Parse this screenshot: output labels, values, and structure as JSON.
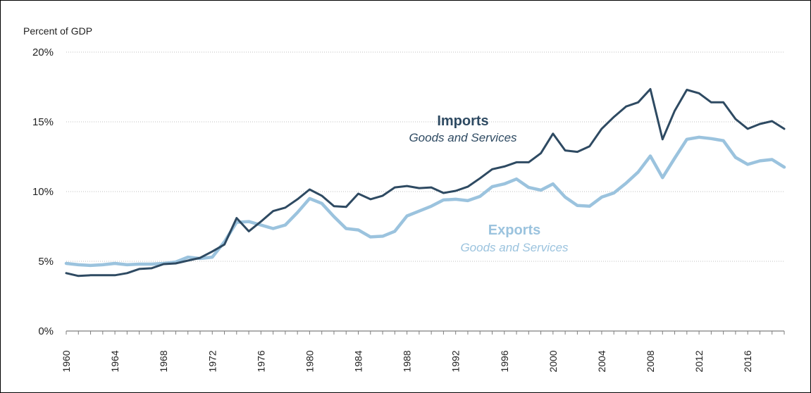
{
  "chart_data": {
    "type": "line",
    "ylabel": "Percent of GDP",
    "ylim": [
      0,
      20
    ],
    "y_ticks": [
      "0%",
      "5%",
      "10%",
      "15%",
      "20%"
    ],
    "y_tick_values": [
      0,
      5,
      10,
      15,
      20
    ],
    "x_range": [
      1960,
      2019
    ],
    "x_tick_labels": [
      "1960",
      "1964",
      "1968",
      "1972",
      "1976",
      "1980",
      "1984",
      "1988",
      "1992",
      "1996",
      "2000",
      "2004",
      "2008",
      "2012",
      "2016"
    ],
    "grid": "horizontal dotted",
    "x": [
      1960,
      1961,
      1962,
      1963,
      1964,
      1965,
      1966,
      1967,
      1968,
      1969,
      1970,
      1971,
      1972,
      1973,
      1974,
      1975,
      1976,
      1977,
      1978,
      1979,
      1980,
      1981,
      1982,
      1983,
      1984,
      1985,
      1986,
      1987,
      1988,
      1989,
      1990,
      1991,
      1992,
      1993,
      1994,
      1995,
      1996,
      1997,
      1998,
      1999,
      2000,
      2001,
      2002,
      2003,
      2004,
      2005,
      2006,
      2007,
      2008,
      2009,
      2010,
      2011,
      2012,
      2013,
      2014,
      2015,
      2016,
      2017,
      2018,
      2019
    ],
    "series": [
      {
        "name": "Imports",
        "subtitle": "Goods and Services",
        "color": "#2e4a62",
        "values": [
          4.15,
          3.95,
          4.0,
          4.0,
          4.0,
          4.15,
          4.45,
          4.5,
          4.8,
          4.85,
          5.05,
          5.25,
          5.7,
          6.2,
          8.1,
          7.15,
          7.85,
          8.6,
          8.85,
          9.45,
          10.15,
          9.7,
          8.95,
          8.9,
          9.85,
          9.45,
          9.7,
          10.3,
          10.4,
          10.25,
          10.3,
          9.9,
          10.05,
          10.35,
          10.95,
          11.6,
          11.8,
          12.1,
          12.1,
          12.75,
          14.15,
          12.95,
          12.85,
          13.25,
          14.5,
          15.35,
          16.1,
          16.4,
          17.35,
          13.75,
          15.8,
          17.3,
          17.05,
          16.4,
          16.4,
          15.2,
          14.5,
          14.85,
          15.05,
          14.5
        ]
      },
      {
        "name": "Exports",
        "subtitle": "Goods and Services",
        "color": "#9bc3de",
        "values": [
          4.85,
          4.75,
          4.7,
          4.75,
          4.85,
          4.75,
          4.8,
          4.8,
          4.85,
          4.95,
          5.3,
          5.2,
          5.3,
          6.4,
          7.8,
          7.85,
          7.6,
          7.35,
          7.6,
          8.5,
          9.5,
          9.15,
          8.2,
          7.35,
          7.25,
          6.75,
          6.8,
          7.15,
          8.25,
          8.6,
          8.95,
          9.4,
          9.45,
          9.35,
          9.65,
          10.35,
          10.55,
          10.9,
          10.3,
          10.1,
          10.55,
          9.6,
          9.0,
          8.95,
          9.6,
          9.9,
          10.6,
          11.4,
          12.55,
          11.0,
          12.4,
          13.75,
          13.9,
          13.8,
          13.65,
          12.45,
          11.95,
          12.2,
          12.3,
          11.75
        ]
      }
    ]
  }
}
